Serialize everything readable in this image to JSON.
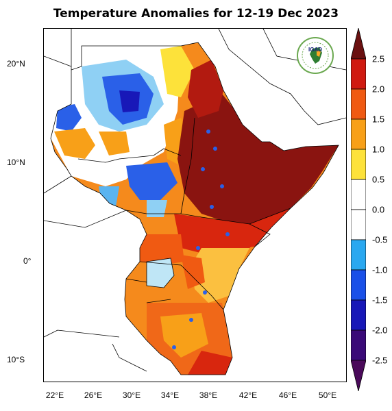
{
  "title": "Temperature Anomalies for 12-19 Dec 2023",
  "logo_text": "IGAD",
  "lon_labels": [
    "22°E",
    "26°E",
    "30°E",
    "34°E",
    "38°E",
    "42°E",
    "46°E",
    "50°E"
  ],
  "lat_labels": [
    "20°N",
    "10°N",
    "0°",
    "10°S"
  ],
  "colorbar": {
    "labels": [
      "2.5",
      "2.0",
      "1.5",
      "1.0",
      "0.5",
      "0.0",
      "-0.5",
      "-1.0",
      "-1.5",
      "-2.0",
      "-2.5"
    ],
    "colors": [
      "#7a1010",
      "#d01a10",
      "#f05a12",
      "#f8a018",
      "#fde23a",
      "#ffffff",
      "#ffffff",
      "#2aa8f0",
      "#1a50e8",
      "#1818b8",
      "#3a0a78",
      "#6a1070"
    ]
  }
}
